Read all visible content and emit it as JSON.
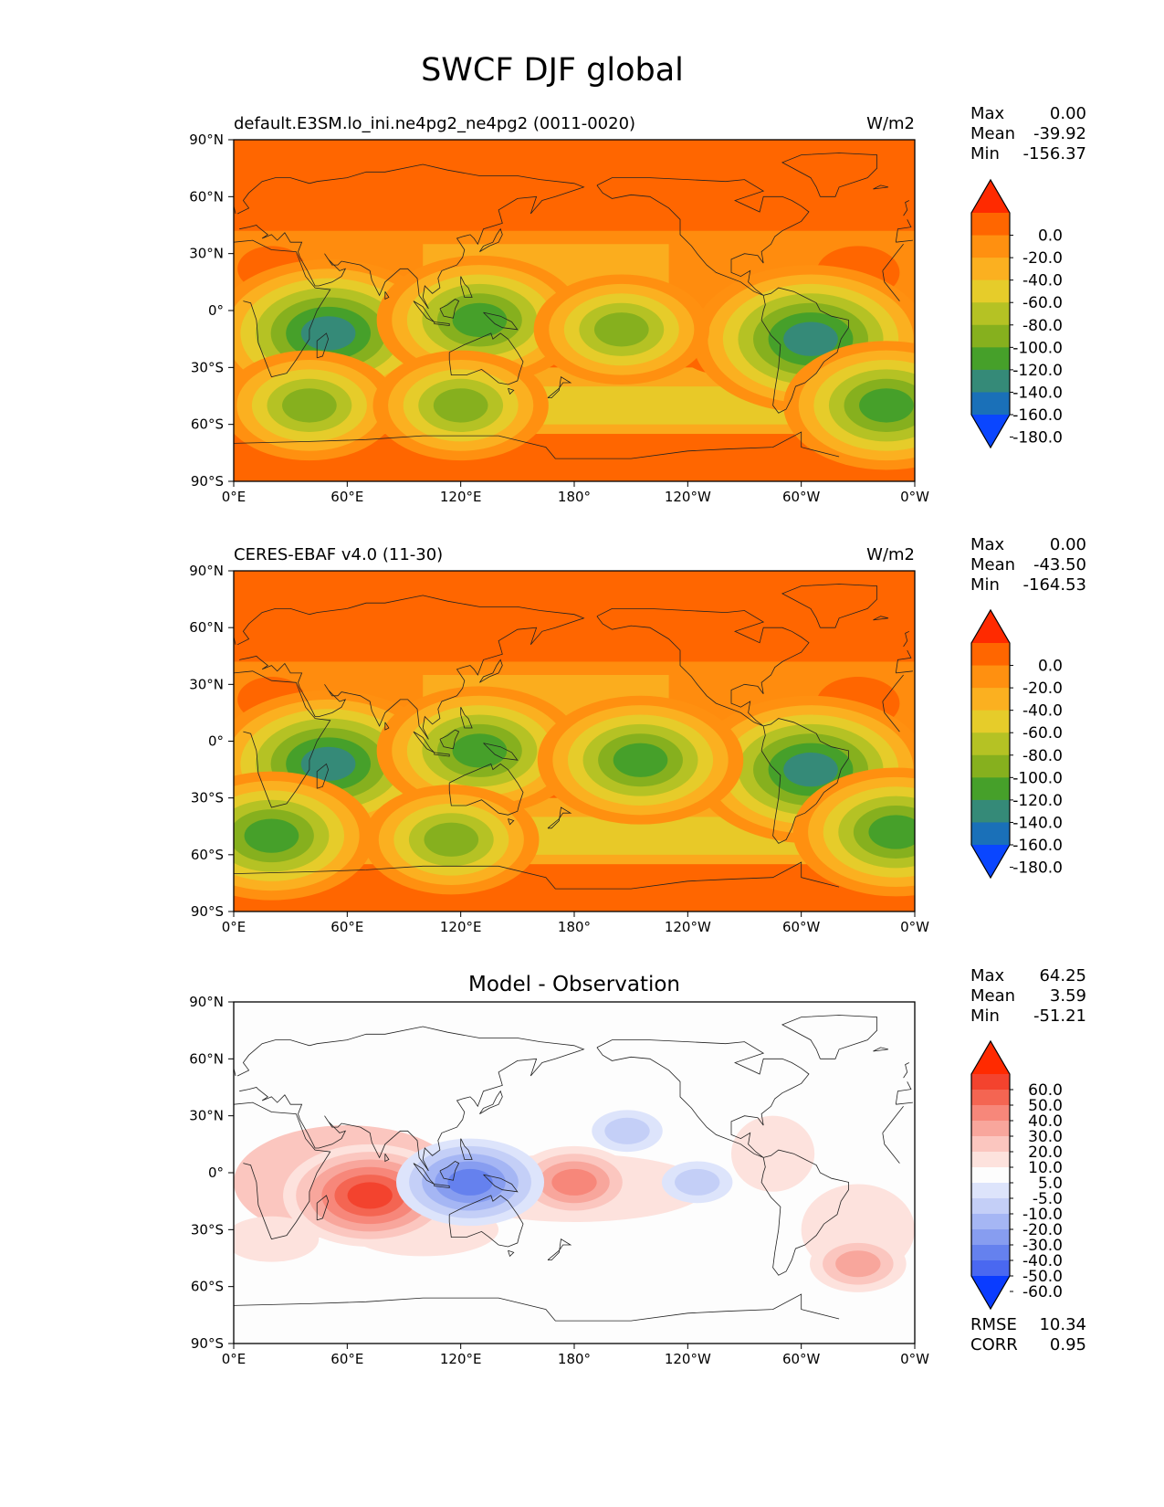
{
  "title": "SWCF DJF global",
  "chart_data": [
    {
      "type": "heatmap",
      "panel": "model",
      "title_left": "default.E3SM.lo_ini.ne4pg2_ne4pg2 (0011-0020)",
      "title_right": "W/m2",
      "stats": [
        {
          "label": "Max",
          "value": "0.00"
        },
        {
          "label": "Mean",
          "value": "-39.92"
        },
        {
          "label": "Min",
          "value": "-156.37"
        }
      ],
      "xticks": [
        "0°E",
        "60°E",
        "120°E",
        "180°",
        "120°W",
        "60°W",
        "0°W"
      ],
      "yticks": [
        "90°N",
        "60°N",
        "30°N",
        "0°",
        "30°S",
        "60°S",
        "90°S"
      ],
      "xlim": [
        0,
        360
      ],
      "ylim": [
        -90,
        90
      ],
      "colorbar": {
        "extend": "both",
        "labels": [
          "0.0",
          "-20.0",
          "-40.0",
          "-60.0",
          "-80.0",
          "-100.0",
          "-120.0",
          "-140.0",
          "-160.0",
          "-180.0"
        ],
        "colors": [
          "#ff2a00",
          "#ff6600",
          "#ff9010",
          "#fbb020",
          "#e6cc2a",
          "#b5c224",
          "#86b01e",
          "#46a02a",
          "#358a78",
          "#1a70b8",
          "#0a46ff"
        ]
      },
      "features": [
        {
          "lon": 50,
          "lat": -12,
          "value": -140
        },
        {
          "lon": 130,
          "lat": -5,
          "value": -110
        },
        {
          "lon": 305,
          "lat": -15,
          "value": -140
        },
        {
          "lon": 40,
          "lat": -50,
          "value": -100
        },
        {
          "lon": 120,
          "lat": -50,
          "value": -100
        },
        {
          "lon": 205,
          "lat": -10,
          "value": -100
        },
        {
          "lon": 345,
          "lat": -50,
          "value": -110
        }
      ]
    },
    {
      "type": "heatmap",
      "panel": "observation",
      "title_left": "CERES-EBAF v4.0 (11-30)",
      "title_right": "W/m2",
      "stats": [
        {
          "label": "Max",
          "value": "0.00"
        },
        {
          "label": "Mean",
          "value": "-43.50"
        },
        {
          "label": "Min",
          "value": "-164.53"
        }
      ],
      "xticks": [
        "0°E",
        "60°E",
        "120°E",
        "180°",
        "120°W",
        "60°W",
        "0°W"
      ],
      "yticks": [
        "90°N",
        "60°N",
        "30°N",
        "0°",
        "30°S",
        "60°S",
        "90°S"
      ],
      "xlim": [
        0,
        360
      ],
      "ylim": [
        -90,
        90
      ],
      "colorbar": {
        "extend": "both",
        "labels": [
          "0.0",
          "-20.0",
          "-40.0",
          "-60.0",
          "-80.0",
          "-100.0",
          "-120.0",
          "-140.0",
          "-160.0",
          "-180.0"
        ],
        "colors": [
          "#ff2a00",
          "#ff6600",
          "#ff9010",
          "#fbb020",
          "#e6cc2a",
          "#b5c224",
          "#86b01e",
          "#46a02a",
          "#358a78",
          "#1a70b8",
          "#0a46ff"
        ]
      },
      "features": [
        {
          "lon": 50,
          "lat": -12,
          "value": -140
        },
        {
          "lon": 130,
          "lat": -5,
          "value": -120
        },
        {
          "lon": 305,
          "lat": -15,
          "value": -140
        },
        {
          "lon": 20,
          "lat": -50,
          "value": -120
        },
        {
          "lon": 115,
          "lat": -52,
          "value": -100
        },
        {
          "lon": 215,
          "lat": -10,
          "value": -110
        },
        {
          "lon": 350,
          "lat": -48,
          "value": -120
        }
      ]
    },
    {
      "type": "heatmap",
      "panel": "difference",
      "title_center": "Model - Observation",
      "stats": [
        {
          "label": "Max",
          "value": "64.25"
        },
        {
          "label": "Mean",
          "value": "3.59"
        },
        {
          "label": "Min",
          "value": "-51.21"
        }
      ],
      "xticks": [
        "0°E",
        "60°E",
        "120°E",
        "180°",
        "120°W",
        "60°W",
        "0°W"
      ],
      "yticks": [
        "90°N",
        "60°N",
        "30°N",
        "0°",
        "30°S",
        "60°S",
        "90°S"
      ],
      "xlim": [
        0,
        360
      ],
      "ylim": [
        -90,
        90
      ],
      "colorbar": {
        "extend": "both",
        "labels": [
          "60.0",
          "50.0",
          "40.0",
          "30.0",
          "20.0",
          "10.0",
          "5.0",
          "-5.0",
          "-10.0",
          "-20.0",
          "-30.0",
          "-40.0",
          "-50.0",
          "-60.0"
        ],
        "colors": [
          "#ff2a00",
          "#f3432e",
          "#f46552",
          "#f7877a",
          "#f8a69c",
          "#fbc6bf",
          "#fde2dd",
          "#fdfdfd",
          "#dde4fb",
          "#c4cff7",
          "#a5b6f4",
          "#879df0",
          "#6581ee",
          "#4a68f0",
          "#0a3cff"
        ]
      },
      "features": [
        {
          "lon": 72,
          "lat": -12,
          "value": 60
        },
        {
          "lon": 180,
          "lat": -5,
          "value": 40
        },
        {
          "lon": 330,
          "lat": -48,
          "value": 30
        },
        {
          "lon": 125,
          "lat": -5,
          "value": -50
        },
        {
          "lon": 208,
          "lat": 22,
          "value": -20
        },
        {
          "lon": 245,
          "lat": -5,
          "value": -20
        }
      ],
      "rmse": "10.34",
      "corr": "0.95"
    }
  ]
}
